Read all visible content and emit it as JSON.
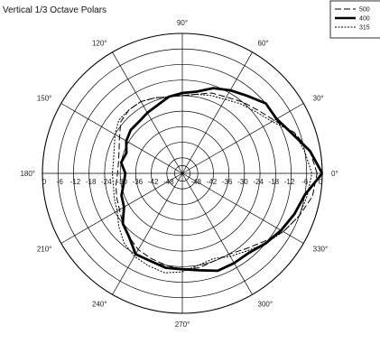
{
  "chart_data": {
    "type": "polar",
    "title": "Vertical 1/3 Octave Polars",
    "angle_unit": "degrees",
    "angle_ticks": [
      {
        "angle": 0,
        "label": "0°"
      },
      {
        "angle": 30,
        "label": "30°"
      },
      {
        "angle": 60,
        "label": "60°"
      },
      {
        "angle": 90,
        "label": "90°"
      },
      {
        "angle": 120,
        "label": "120°"
      },
      {
        "angle": 150,
        "label": "150°"
      },
      {
        "angle": 180,
        "label": "180°"
      },
      {
        "angle": 210,
        "label": "210°"
      },
      {
        "angle": 240,
        "label": "240°"
      },
      {
        "angle": 270,
        "label": "270°"
      },
      {
        "angle": 300,
        "label": "300°"
      },
      {
        "angle": 330,
        "label": "330°"
      }
    ],
    "radial_range": [
      -54,
      0
    ],
    "radial_ticks": [
      0,
      -6,
      -12,
      -18,
      -24,
      -30,
      -36,
      -42,
      -48
    ],
    "radial_tick_labels": [
      "0",
      "-6",
      "-12",
      "-18",
      "-24",
      "-30",
      "-36",
      "-42",
      "-48"
    ],
    "grid": true,
    "legend_position": "top-right",
    "series": [
      {
        "name": "500",
        "style": "dashed",
        "data": [
          [
            0,
            -2.0
          ],
          [
            10,
            -4
          ],
          [
            20,
            -8
          ],
          [
            30,
            -13
          ],
          [
            40,
            -16
          ],
          [
            50,
            -18
          ],
          [
            60,
            -20
          ],
          [
            70,
            -21
          ],
          [
            80,
            -23
          ],
          [
            90,
            -24
          ],
          [
            100,
            -24
          ],
          [
            110,
            -23
          ],
          [
            120,
            -22
          ],
          [
            130,
            -22
          ],
          [
            140,
            -23
          ],
          [
            150,
            -26
          ],
          [
            160,
            -28
          ],
          [
            170,
            -29
          ],
          [
            180,
            -29
          ],
          [
            190,
            -28
          ],
          [
            200,
            -27
          ],
          [
            210,
            -26
          ],
          [
            220,
            -24
          ],
          [
            230,
            -22
          ],
          [
            240,
            -20
          ],
          [
            250,
            -19
          ],
          [
            260,
            -18
          ],
          [
            270,
            -17
          ],
          [
            280,
            -17
          ],
          [
            290,
            -18
          ],
          [
            300,
            -18
          ],
          [
            310,
            -16
          ],
          [
            320,
            -13
          ],
          [
            330,
            -9
          ],
          [
            340,
            -6
          ],
          [
            350,
            -3
          ]
        ]
      },
      {
        "name": "400",
        "style": "solid-thick",
        "data": [
          [
            0,
            0
          ],
          [
            10,
            -4
          ],
          [
            20,
            -9
          ],
          [
            30,
            -12
          ],
          [
            40,
            -12
          ],
          [
            50,
            -15
          ],
          [
            60,
            -17
          ],
          [
            70,
            -19
          ],
          [
            80,
            -22
          ],
          [
            90,
            -23
          ],
          [
            100,
            -24
          ],
          [
            110,
            -26
          ],
          [
            120,
            -27
          ],
          [
            130,
            -28
          ],
          [
            140,
            -28
          ],
          [
            150,
            -29
          ],
          [
            160,
            -31
          ],
          [
            170,
            -30
          ],
          [
            180,
            -32
          ],
          [
            190,
            -31
          ],
          [
            200,
            -29
          ],
          [
            210,
            -28
          ],
          [
            220,
            -24
          ],
          [
            230,
            -22
          ],
          [
            240,
            -18
          ],
          [
            250,
            -18
          ],
          [
            260,
            -17
          ],
          [
            270,
            -17
          ],
          [
            280,
            -16
          ],
          [
            290,
            -14
          ],
          [
            300,
            -14
          ],
          [
            310,
            -14
          ],
          [
            320,
            -12
          ],
          [
            330,
            -10
          ],
          [
            340,
            -8
          ],
          [
            350,
            -6
          ]
        ]
      },
      {
        "name": "315",
        "style": "dotted",
        "data": [
          [
            0,
            -4
          ],
          [
            10,
            -6
          ],
          [
            20,
            -8
          ],
          [
            30,
            -14
          ],
          [
            40,
            -17
          ],
          [
            50,
            -19
          ],
          [
            60,
            -21
          ],
          [
            70,
            -22
          ],
          [
            80,
            -23
          ],
          [
            90,
            -24
          ],
          [
            100,
            -24
          ],
          [
            110,
            -23
          ],
          [
            120,
            -22
          ],
          [
            130,
            -22
          ],
          [
            140,
            -22
          ],
          [
            150,
            -24
          ],
          [
            160,
            -26
          ],
          [
            170,
            -27
          ],
          [
            180,
            -27
          ],
          [
            190,
            -27
          ],
          [
            200,
            -26
          ],
          [
            210,
            -25
          ],
          [
            220,
            -22
          ],
          [
            230,
            -19
          ],
          [
            240,
            -17
          ],
          [
            250,
            -16
          ],
          [
            260,
            -15
          ],
          [
            270,
            -16
          ],
          [
            280,
            -18
          ],
          [
            290,
            -19
          ],
          [
            300,
            -17
          ],
          [
            310,
            -15
          ],
          [
            320,
            -12
          ],
          [
            330,
            -9
          ],
          [
            340,
            -6
          ],
          [
            350,
            -5
          ]
        ]
      }
    ]
  }
}
